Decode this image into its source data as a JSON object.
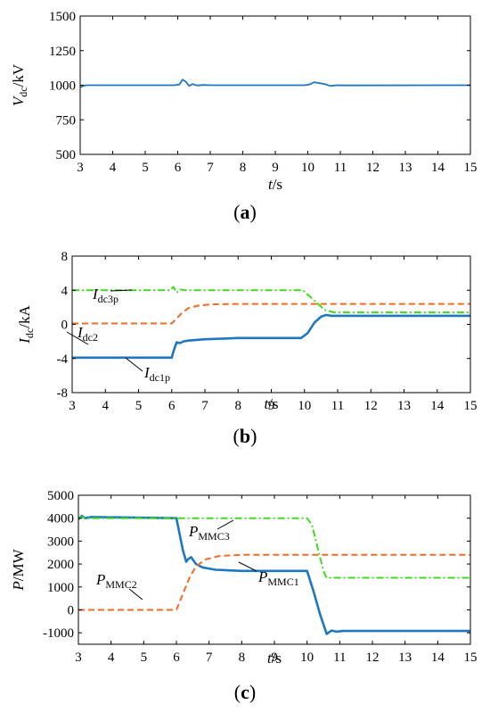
{
  "chart_data": [
    {
      "type": "line",
      "panel_label": "(a)",
      "ylabel": "V",
      "ylabel_sub": "dc",
      "ylabel_unit": "/kV",
      "xlabel": "t",
      "xlabel_unit": "/s",
      "xlim": [
        3,
        15
      ],
      "ylim": [
        500,
        1500
      ],
      "xticks": [
        3,
        4,
        5,
        6,
        7,
        8,
        9,
        10,
        11,
        12,
        13,
        14,
        15
      ],
      "yticks": [
        500,
        750,
        1000,
        1250,
        1500
      ],
      "grid": false,
      "series": [
        {
          "color": "#1f77c0",
          "dash": "solid",
          "x": [
            3,
            3.1,
            3.2,
            5.9,
            6.05,
            6.15,
            6.25,
            6.35,
            6.45,
            6.6,
            6.8,
            7.0,
            9.9,
            10.05,
            10.2,
            10.35,
            10.5,
            10.7,
            10.9,
            11.2,
            15
          ],
          "y": [
            985,
            995,
            1000,
            1000,
            1005,
            1040,
            1025,
            995,
            1008,
            998,
            1002,
            1000,
            1000,
            1005,
            1022,
            1015,
            1010,
            995,
            1000,
            999,
            1000
          ]
        }
      ]
    },
    {
      "type": "line",
      "panel_label": "(b)",
      "ylabel": "I",
      "ylabel_sub": "dc",
      "ylabel_unit": "/kA",
      "xlabel": "t",
      "xlabel_unit": "/s",
      "xlim": [
        3,
        15
      ],
      "ylim": [
        -8,
        8
      ],
      "xticks": [
        3,
        4,
        5,
        6,
        7,
        8,
        9,
        10,
        11,
        12,
        13,
        14,
        15
      ],
      "yticks": [
        -8,
        -4,
        0,
        4,
        8
      ],
      "grid": false,
      "series": [
        {
          "name": "I",
          "name_sub": "dc1p",
          "color": "#1f77c0",
          "dash": "solid",
          "width": 2.6,
          "x": [
            3,
            6.0,
            6.05,
            6.15,
            6.25,
            6.35,
            6.5,
            7.0,
            8.0,
            9.9,
            10.1,
            10.3,
            10.5,
            10.65,
            10.8,
            15
          ],
          "y": [
            -3.9,
            -3.9,
            -3.2,
            -2.1,
            -2.2,
            -2.0,
            -1.9,
            -1.75,
            -1.6,
            -1.6,
            -1.0,
            0.2,
            0.9,
            1.1,
            1.0,
            1.0
          ]
        },
        {
          "name": "I",
          "name_sub": "dc2",
          "color": "#f26b23",
          "dash": "7,4",
          "width": 2,
          "x": [
            3,
            6.0,
            6.1,
            6.3,
            6.5,
            6.8,
            7.2,
            8.0,
            15
          ],
          "y": [
            0.1,
            0.1,
            0.5,
            1.3,
            1.9,
            2.2,
            2.35,
            2.4,
            2.4
          ]
        },
        {
          "name": "I",
          "name_sub": "dc3p",
          "color": "#3ddc1e",
          "dash": "8,3,2,3",
          "width": 2,
          "x": [
            3,
            5.95,
            6.05,
            6.15,
            6.25,
            6.4,
            9.95,
            10.3,
            10.6,
            10.9,
            15
          ],
          "y": [
            4.0,
            4.0,
            4.4,
            3.7,
            4.1,
            4.0,
            4.0,
            2.8,
            1.7,
            1.4,
            1.4
          ]
        }
      ]
    },
    {
      "type": "line",
      "panel_label": "(c)",
      "ylabel": "P",
      "ylabel_sub": "",
      "ylabel_unit": "/MW",
      "xlabel": "t",
      "xlabel_unit": "/s",
      "xlim": [
        3,
        15
      ],
      "ylim": [
        -1500,
        5000
      ],
      "xticks": [
        3,
        4,
        5,
        6,
        7,
        8,
        9,
        10,
        11,
        12,
        13,
        14,
        15
      ],
      "yticks": [
        -1000,
        0,
        1000,
        2000,
        3000,
        4000,
        5000
      ],
      "grid": false,
      "series": [
        {
          "name": "P",
          "name_sub": "MMC1",
          "color": "#1f77c0",
          "dash": "solid",
          "width": 2.6,
          "x": [
            3,
            3.1,
            3.2,
            3.4,
            6.0,
            6.2,
            6.3,
            6.35,
            6.45,
            6.6,
            6.8,
            7.2,
            8.0,
            10.0,
            10.2,
            10.4,
            10.6,
            10.75,
            10.9,
            11.1,
            15
          ],
          "y": [
            3950,
            4100,
            4000,
            4050,
            4000,
            2600,
            2100,
            2200,
            2300,
            2000,
            1850,
            1750,
            1700,
            1700,
            800,
            -200,
            -1050,
            -900,
            -950,
            -920,
            -920
          ]
        },
        {
          "name": "P",
          "name_sub": "MMC2",
          "color": "#f26b23",
          "dash": "7,4",
          "width": 2,
          "x": [
            3,
            6.0,
            6.2,
            6.4,
            6.6,
            6.9,
            7.3,
            8.0,
            15
          ],
          "y": [
            0,
            0,
            700,
            1400,
            1900,
            2200,
            2350,
            2400,
            2400
          ]
        },
        {
          "name": "P",
          "name_sub": "MMC3",
          "color": "#3ddc1e",
          "dash": "8,3,2,3",
          "width": 2,
          "x": [
            3,
            3.1,
            3.2,
            3.4,
            10.0,
            10.15,
            10.5,
            10.6,
            15
          ],
          "y": [
            4000,
            4050,
            4000,
            4000,
            4000,
            3700,
            1700,
            1400,
            1400
          ]
        }
      ]
    }
  ]
}
